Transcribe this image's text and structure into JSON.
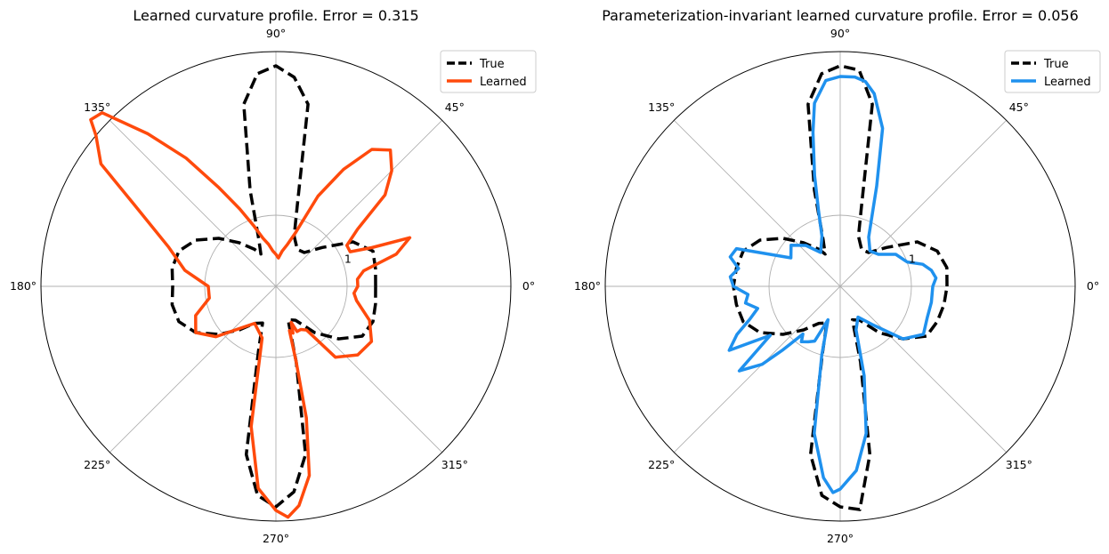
{
  "chart_data": [
    {
      "type": "polar-line",
      "title": "Learned curvature profile. Error = 0.315",
      "angle_ticks": [
        "0°",
        "45°",
        "90°",
        "135°",
        "180°",
        "225°",
        "270°",
        "315°"
      ],
      "radial_ticks": [
        {
          "value": 1,
          "label": "1"
        }
      ],
      "rmax": 3.3,
      "grid": true,
      "legend_position": "top-right",
      "legend": [
        "True",
        "Learned"
      ],
      "series": [
        {
          "name": "True",
          "style": "dashed",
          "color": "#000000",
          "theta": [
            0,
            10,
            20,
            30,
            40,
            50,
            60,
            70,
            75,
            80,
            85,
            90,
            95,
            100,
            105,
            110,
            115,
            120,
            130,
            140,
            150,
            160,
            170,
            180,
            190,
            200,
            210,
            220,
            230,
            240,
            250,
            255,
            260,
            265,
            270,
            275,
            280,
            285,
            290,
            300,
            310,
            320,
            330,
            340,
            350,
            360
          ],
          "r": [
            1.4,
            1.42,
            1.45,
            1.25,
            0.85,
            0.62,
            0.6,
            0.75,
            1.15,
            2.6,
            2.95,
            3.1,
            3.0,
            2.6,
            1.4,
            0.7,
            0.5,
            0.6,
            0.8,
            1.05,
            1.3,
            1.45,
            1.48,
            1.45,
            1.48,
            1.45,
            1.3,
            1.05,
            0.8,
            0.6,
            0.55,
            0.95,
            2.4,
            2.95,
            3.1,
            2.9,
            2.4,
            1.1,
            0.5,
            0.55,
            0.85,
            1.15,
            1.4,
            1.45,
            1.42,
            1.4
          ]
        },
        {
          "name": "Learned",
          "style": "solid",
          "color": "#ff4a0c",
          "theta": [
            0,
            5,
            10,
            15,
            20,
            22,
            25,
            30,
            35,
            40,
            45,
            50,
            55,
            60,
            65,
            70,
            75,
            80,
            85,
            90,
            95,
            100,
            105,
            110,
            115,
            120,
            125,
            130,
            135,
            138,
            140,
            145,
            150,
            160,
            170,
            180,
            190,
            200,
            210,
            220,
            240,
            255,
            260,
            265,
            270,
            273,
            276,
            280,
            283,
            285,
            287,
            290,
            293,
            295,
            300,
            305,
            310,
            320,
            330,
            340,
            350,
            355,
            360
          ],
          "r": [
            1.15,
            1.15,
            1.25,
            1.75,
            2.0,
            1.45,
            1.15,
            1.15,
            1.4,
            2.0,
            2.3,
            2.5,
            2.35,
            1.9,
            1.4,
            0.8,
            0.6,
            0.5,
            0.4,
            0.45,
            0.5,
            0.6,
            0.7,
            0.9,
            1.2,
            1.6,
            2.2,
            2.8,
            3.45,
            3.5,
            3.3,
            3.0,
            2.3,
            1.6,
            1.3,
            0.95,
            0.95,
            1.2,
            1.3,
            1.1,
            0.6,
            0.75,
            2.0,
            2.85,
            3.15,
            3.25,
            3.1,
            2.7,
            1.9,
            1.1,
            0.65,
            0.7,
            0.55,
            0.7,
            0.7,
            0.75,
            1.3,
            1.5,
            1.55,
            1.4,
            1.15,
            1.1,
            1.15
          ]
        }
      ]
    },
    {
      "type": "polar-line",
      "title": "Parameterization-invariant learned curvature profile. Error = 0.056",
      "angle_ticks": [
        "0°",
        "45°",
        "90°",
        "135°",
        "180°",
        "225°",
        "270°",
        "315°"
      ],
      "radial_ticks": [
        {
          "value": 1,
          "label": "1"
        }
      ],
      "rmax": 3.3,
      "grid": true,
      "legend_position": "top-right",
      "legend": [
        "True",
        "Learned"
      ],
      "series": [
        {
          "name": "True",
          "style": "dashed",
          "color": "#000000",
          "theta": [
            0,
            10,
            20,
            30,
            40,
            50,
            60,
            70,
            75,
            80,
            85,
            90,
            95,
            100,
            105,
            110,
            115,
            120,
            130,
            140,
            150,
            160,
            170,
            180,
            190,
            200,
            210,
            220,
            230,
            240,
            250,
            255,
            260,
            265,
            270,
            275,
            280,
            285,
            290,
            300,
            310,
            320,
            330,
            340,
            350,
            360
          ],
          "r": [
            1.5,
            1.52,
            1.45,
            1.25,
            0.85,
            0.62,
            0.6,
            0.75,
            1.15,
            2.6,
            3.05,
            3.1,
            3.0,
            2.6,
            1.4,
            0.7,
            0.5,
            0.6,
            0.8,
            1.05,
            1.3,
            1.45,
            1.48,
            1.5,
            1.48,
            1.45,
            1.3,
            1.05,
            0.8,
            0.6,
            0.55,
            0.95,
            2.4,
            2.95,
            3.1,
            3.15,
            2.4,
            1.1,
            0.5,
            0.55,
            0.85,
            1.15,
            1.4,
            1.45,
            1.48,
            1.5
          ]
        },
        {
          "name": "Learned",
          "style": "solid",
          "color": "#1f91ee",
          "theta": [
            0,
            5,
            10,
            15,
            20,
            30,
            40,
            50,
            60,
            70,
            75,
            80,
            83,
            86,
            90,
            94,
            98,
            100,
            103,
            106,
            110,
            120,
            130,
            140,
            150,
            155,
            160,
            165,
            170,
            175,
            180,
            185,
            190,
            195,
            200,
            205,
            210,
            215,
            220,
            225,
            228,
            232,
            235,
            240,
            245,
            250,
            255,
            260,
            265,
            268,
            270,
            275,
            280,
            285,
            290,
            300,
            310,
            320,
            330,
            340,
            350,
            360
          ],
          "r": [
            1.3,
            1.35,
            1.3,
            1.2,
            1.0,
            0.9,
            0.7,
            0.65,
            0.8,
            1.5,
            2.3,
            2.75,
            2.9,
            2.95,
            2.95,
            2.9,
            2.6,
            2.2,
            1.6,
            1.1,
            0.75,
            0.55,
            0.75,
            0.9,
            0.8,
            1.05,
            1.55,
            1.6,
            1.45,
            1.55,
            1.5,
            1.3,
            1.35,
            1.2,
            1.35,
            1.6,
            1.8,
            1.2,
            1.85,
            1.55,
            1.2,
            0.85,
            0.95,
            0.9,
            0.85,
            0.5,
            1.0,
            2.1,
            2.7,
            2.9,
            2.85,
            2.6,
            2.1,
            1.3,
            0.65,
            0.5,
            0.7,
            1.15,
            1.35,
            1.3,
            1.3,
            1.3
          ]
        }
      ]
    }
  ]
}
